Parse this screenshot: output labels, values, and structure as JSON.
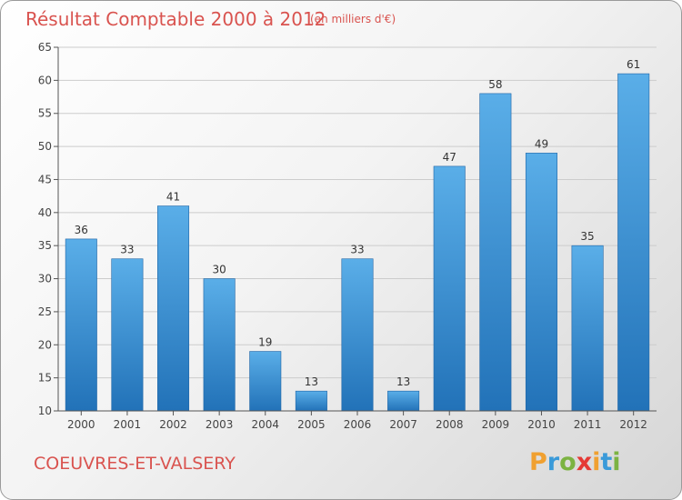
{
  "header": {
    "title": "Résultat Comptable 2000 à 2012",
    "subtitle": "(en milliers d'€)"
  },
  "footer": {
    "commune": "COEUVRES-ET-VALSERY",
    "logo": {
      "letters": [
        "P",
        "r",
        "o",
        "x",
        "i",
        "t",
        "i"
      ],
      "colors": [
        "#f0a030",
        "#3a9ad9",
        "#7cb342",
        "#e53935",
        "#f0a030",
        "#3a9ad9",
        "#7cb342"
      ]
    }
  },
  "chart_data": {
    "type": "bar",
    "title": "Résultat Comptable 2000 à 2012",
    "subtitle": "(en milliers d'€)",
    "categories": [
      "2000",
      "2001",
      "2002",
      "2003",
      "2004",
      "2005",
      "2006",
      "2007",
      "2008",
      "2009",
      "2010",
      "2011",
      "2012"
    ],
    "values": [
      36,
      33,
      41,
      30,
      19,
      13,
      33,
      13,
      47,
      58,
      49,
      35,
      61
    ],
    "value_labels": [
      "36",
      "33",
      "41",
      "30",
      "19",
      "13",
      "33",
      "13",
      "47",
      "58",
      "49",
      "35",
      "61"
    ],
    "ylim": [
      10,
      65
    ],
    "yticks": [
      10,
      15,
      20,
      25,
      30,
      35,
      40,
      45,
      50,
      55,
      60,
      65
    ],
    "ytick_labels": [
      "10",
      "15",
      "20",
      "25",
      "30",
      "35",
      "40",
      "45",
      "50",
      "55",
      "60",
      "65"
    ],
    "grid": true,
    "bar_color_top": "#5aaee8",
    "bar_color_bottom": "#2272b8",
    "grid_color": "#cccccc",
    "axis_color": "#555555"
  }
}
